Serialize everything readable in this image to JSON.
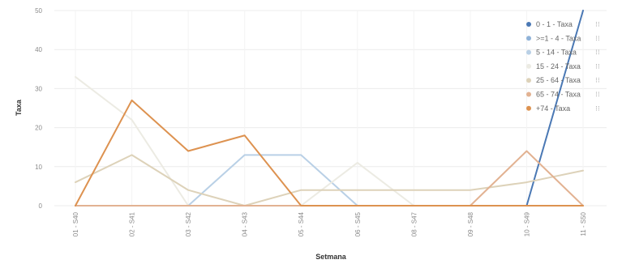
{
  "chart_data": {
    "type": "line",
    "xlabel": "Setmana",
    "ylabel": "Taxa",
    "ylim": [
      0,
      50
    ],
    "yticks": [
      0,
      10,
      20,
      30,
      40,
      50
    ],
    "grid": true,
    "legend_position": "top-right",
    "categories": [
      "01 - S40",
      "02 - S41",
      "03 - S42",
      "04 - S43",
      "05 - S44",
      "06 - S45",
      "08 - S47",
      "09 - S48",
      "10 - S49",
      "11 - S50"
    ],
    "series": [
      {
        "name": "0 - 1 - Taxa",
        "color": "#4a78b4",
        "values": [
          0,
          0,
          0,
          0,
          0,
          0,
          0,
          0,
          0,
          50
        ]
      },
      {
        "name": ">=1 - 4 - Taxa",
        "color": "#8fb2d8",
        "values": [
          0,
          0,
          0,
          0,
          0,
          0,
          0,
          0,
          0,
          0
        ]
      },
      {
        "name": "5 - 14 - Taxa",
        "color": "#b9d0e6",
        "values": [
          0,
          0,
          0,
          13,
          13,
          0,
          0,
          0,
          0,
          0
        ]
      },
      {
        "name": "15 - 24 - Taxa",
        "color": "#ecebe3",
        "values": [
          33,
          22,
          0,
          0,
          0,
          11,
          0,
          0,
          0,
          0
        ]
      },
      {
        "name": "25 - 64 - Taxa",
        "color": "#ddd2b9",
        "values": [
          6,
          13,
          4,
          0,
          4,
          4,
          4,
          4,
          6,
          9
        ]
      },
      {
        "name": "65 - 74 - Taxa",
        "color": "#e2b292",
        "values": [
          0,
          0,
          0,
          0,
          0,
          0,
          0,
          0,
          14,
          0
        ]
      },
      {
        "name": "+74 - Taxa",
        "color": "#dd9250",
        "values": [
          0,
          27,
          14,
          18,
          0,
          0,
          0,
          0,
          0,
          0
        ]
      }
    ],
    "legend_menu_glyph": "⁝⁝"
  }
}
